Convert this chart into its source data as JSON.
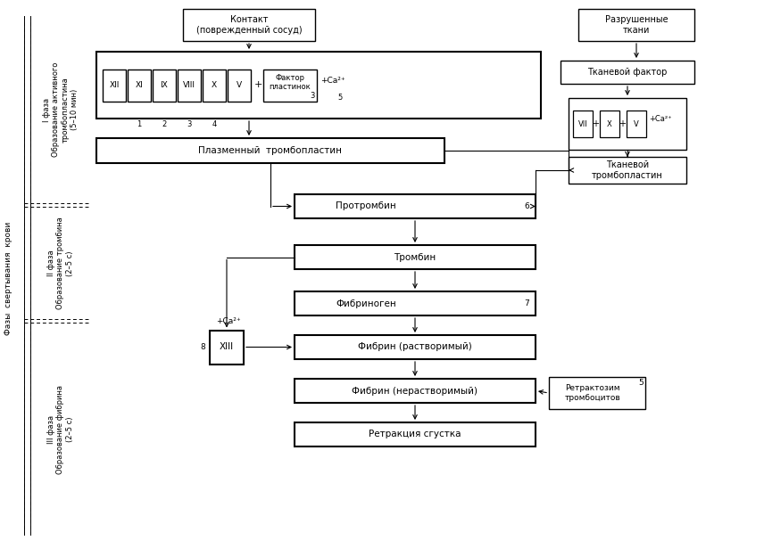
{
  "fig_width": 8.56,
  "fig_height": 6.25,
  "bg_color": "#ffffff",
  "title_main_vertical": "Фазы  свертывания  крови",
  "phase1_label": "I фаза\nОбразование активного\nтромбопластина\n(5–10 мин)",
  "phase2_label": "II фаза\nОбразование тромбина\n(2–5 с)",
  "phase3_label": "III фаза\nОбразование фибрина\n(2–5 с)",
  "contact_box": "Контакт\n(поврежденный сосуд)",
  "razrush_box": "Разрушенные\nткани",
  "tkanevoy_faktor": "Тканевой фактор",
  "plasma_tromb": "Плазменный  тромбопластин",
  "tkanevoy_tromb": "Тканевой\nтромбопластин",
  "protrombin": "Протромбин",
  "trombin": "Тромбин",
  "fibrinogen": "Фибриноген",
  "fibrin_r": "Фибрин (растворимый)",
  "fibrin_nr": "Фибрин (нерастворимый)",
  "retrakcia": "Ретракция сгустка",
  "retraktosim": "Ретрактозим\nтромбоцитов",
  "faktor_plastin": "Фактор\nпластинок",
  "factors_left": [
    "XII",
    "XI",
    "IX",
    "VIII",
    "X",
    "V"
  ],
  "factors_right": [
    "VII",
    "X",
    "V"
  ],
  "num_labels": [
    "1",
    "2",
    "3",
    "4"
  ],
  "num5_label": "5",
  "num6_label": "6",
  "num7_label": "7",
  "num8_label": "8",
  "plus_label": "+",
  "xiii_label": "XIII"
}
